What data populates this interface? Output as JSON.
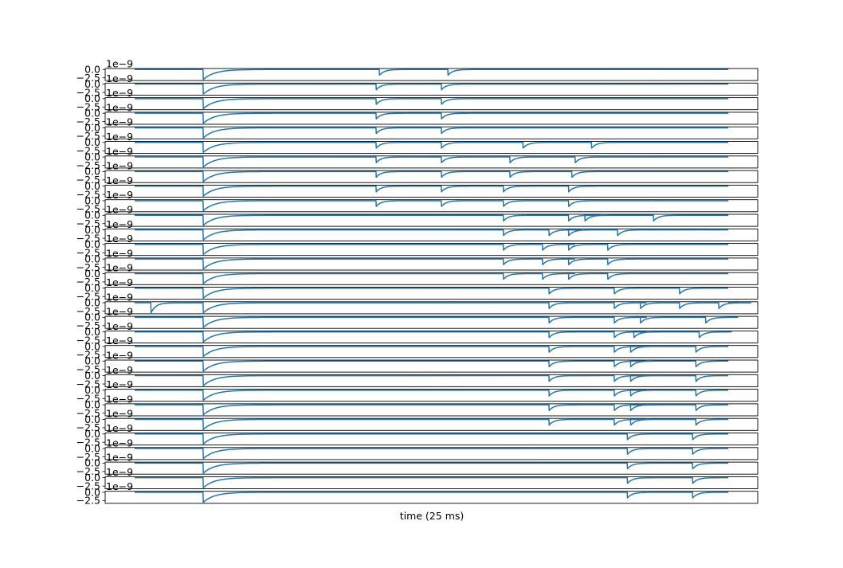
{
  "chart_data": {
    "type": "line",
    "xlabel": "time (25 ms)",
    "ylabel": "",
    "title": "",
    "grid": false,
    "n_panels": 30,
    "y_ticks": [
      "0.0",
      "−2.5"
    ],
    "y_tick_values": [
      0.0,
      -2.5
    ],
    "offset_label": "1e−9",
    "ylim": [
      -3.3,
      0.3
    ],
    "xlim": [
      0,
      1
    ],
    "line_color": "#1f77b4",
    "trace_extent": [
      0.045,
      0.955
    ],
    "main_spike_depth": -3.0,
    "secondary_spike_depth": -1.7,
    "spikes_x": [
      [
        0.15,
        0.42,
        0.525
      ],
      [
        0.15,
        0.415,
        0.515
      ],
      [
        0.15,
        0.415,
        0.515
      ],
      [
        0.15,
        0.415,
        0.515
      ],
      [
        0.15,
        0.415,
        0.515
      ],
      [
        0.15,
        0.415,
        0.515,
        0.64,
        0.745
      ],
      [
        0.15,
        0.415,
        0.515,
        0.62,
        0.72
      ],
      [
        0.15,
        0.415,
        0.515,
        0.62,
        0.715
      ],
      [
        0.15,
        0.415,
        0.515,
        0.61,
        0.71
      ],
      [
        0.15,
        0.415,
        0.515,
        0.61,
        0.71
      ],
      [
        0.15,
        0.61,
        0.71,
        0.735,
        0.84
      ],
      [
        0.15,
        0.61,
        0.68,
        0.71,
        0.785
      ],
      [
        0.15,
        0.61,
        0.67,
        0.71,
        0.77
      ],
      [
        0.15,
        0.61,
        0.67,
        0.71,
        0.77
      ],
      [
        0.15,
        0.61,
        0.67,
        0.71,
        0.77
      ],
      [
        0.15,
        0.68,
        0.78,
        0.88
      ],
      [
        0.07,
        0.15,
        0.68,
        0.78,
        0.82,
        0.88,
        0.94
      ],
      [
        0.15,
        0.68,
        0.78,
        0.82,
        0.92
      ],
      [
        0.15,
        0.68,
        0.78,
        0.81,
        0.91
      ],
      [
        0.15,
        0.68,
        0.78,
        0.805,
        0.905
      ],
      [
        0.15,
        0.68,
        0.78,
        0.805,
        0.905
      ],
      [
        0.15,
        0.68,
        0.78,
        0.805,
        0.905
      ],
      [
        0.15,
        0.68,
        0.78,
        0.805,
        0.905
      ],
      [
        0.15,
        0.68,
        0.78,
        0.805,
        0.905
      ],
      [
        0.15,
        0.68,
        0.78,
        0.805,
        0.905
      ],
      [
        0.15,
        0.8,
        0.9
      ],
      [
        0.15,
        0.8,
        0.9
      ],
      [
        0.15,
        0.8,
        0.9
      ],
      [
        0.15,
        0.8,
        0.9
      ],
      [
        0.15,
        0.8,
        0.9
      ]
    ]
  }
}
